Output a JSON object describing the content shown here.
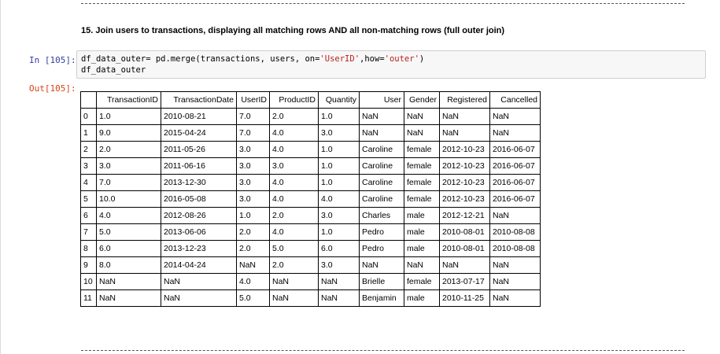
{
  "heading": "15. Join users to transactions, displaying all matching rows AND all non-matching rows (full outer join)",
  "cell": {
    "in_prompt": "In [105]:",
    "out_prompt": "Out[105]:",
    "code_line1": {
      "a": "df_data_outer",
      "b": "= pd.merge(transactions, users, on=",
      "c": "'UserID'",
      "d": ",how=",
      "e": "'outer'",
      "f": ")"
    },
    "code_line2": "df_data_outer"
  },
  "table": {
    "columns": [
      "",
      "TransactionID",
      "TransactionDate",
      "UserID",
      "ProductID",
      "Quantity",
      "User",
      "Gender",
      "Registered",
      "Cancelled"
    ],
    "rows": [
      [
        "0",
        "1.0",
        "2010-08-21",
        "7.0",
        "2.0",
        "1.0",
        "NaN",
        "NaN",
        "NaN",
        "NaN"
      ],
      [
        "1",
        "9.0",
        "2015-04-24",
        "7.0",
        "4.0",
        "3.0",
        "NaN",
        "NaN",
        "NaN",
        "NaN"
      ],
      [
        "2",
        "2.0",
        "2011-05-26",
        "3.0",
        "4.0",
        "1.0",
        "Caroline",
        "female",
        "2012-10-23",
        "2016-06-07"
      ],
      [
        "3",
        "3.0",
        "2011-06-16",
        "3.0",
        "3.0",
        "1.0",
        "Caroline",
        "female",
        "2012-10-23",
        "2016-06-07"
      ],
      [
        "4",
        "7.0",
        "2013-12-30",
        "3.0",
        "4.0",
        "1.0",
        "Caroline",
        "female",
        "2012-10-23",
        "2016-06-07"
      ],
      [
        "5",
        "10.0",
        "2016-05-08",
        "3.0",
        "4.0",
        "4.0",
        "Caroline",
        "female",
        "2012-10-23",
        "2016-06-07"
      ],
      [
        "6",
        "4.0",
        "2012-08-26",
        "1.0",
        "2.0",
        "3.0",
        "Charles",
        "male",
        "2012-12-21",
        "NaN"
      ],
      [
        "7",
        "5.0",
        "2013-06-06",
        "2.0",
        "4.0",
        "1.0",
        "Pedro",
        "male",
        "2010-08-01",
        "2010-08-08"
      ],
      [
        "8",
        "6.0",
        "2013-12-23",
        "2.0",
        "5.0",
        "6.0",
        "Pedro",
        "male",
        "2010-08-01",
        "2010-08-08"
      ],
      [
        "9",
        "8.0",
        "2014-04-24",
        "NaN",
        "2.0",
        "3.0",
        "NaN",
        "NaN",
        "NaN",
        "NaN"
      ],
      [
        "10",
        "NaN",
        "NaN",
        "4.0",
        "NaN",
        "NaN",
        "Brielle",
        "female",
        "2013-07-17",
        "NaN"
      ],
      [
        "11",
        "NaN",
        "NaN",
        "5.0",
        "NaN",
        "NaN",
        "Benjamin",
        "male",
        "2010-11-25",
        "NaN"
      ]
    ]
  }
}
